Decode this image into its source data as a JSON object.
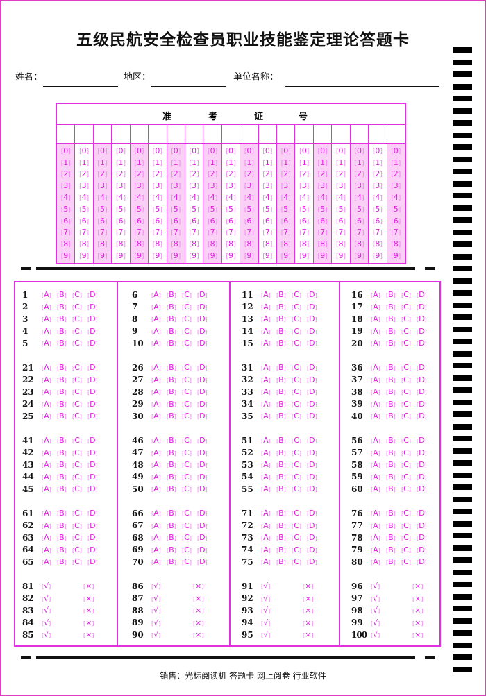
{
  "title": "五级民航安全检查员职业技能鉴定理论答题卡",
  "fields": [
    {
      "label": "姓名："
    },
    {
      "label": "地区："
    },
    {
      "label": "单位名称："
    }
  ],
  "exam_id": {
    "title_chars": [
      "准",
      "考",
      "证",
      "号"
    ],
    "columns": 19,
    "digits": [
      "0",
      "1",
      "2",
      "3",
      "4",
      "5",
      "6",
      "7",
      "8",
      "9"
    ]
  },
  "choice_options": [
    "A",
    "B",
    "C",
    "D"
  ],
  "tf_options": [
    "√",
    "×"
  ],
  "answer_rows": [
    {
      "type": "choice",
      "blocks": [
        [
          1,
          2,
          3,
          4,
          5
        ],
        [
          6,
          7,
          8,
          9,
          10
        ],
        [
          11,
          12,
          13,
          14,
          15
        ],
        [
          16,
          17,
          18,
          19,
          20
        ]
      ]
    },
    {
      "type": "choice",
      "blocks": [
        [
          21,
          22,
          23,
          24,
          25
        ],
        [
          26,
          27,
          28,
          29,
          30
        ],
        [
          31,
          32,
          33,
          34,
          35
        ],
        [
          36,
          37,
          38,
          39,
          40
        ]
      ]
    },
    {
      "type": "choice",
      "blocks": [
        [
          41,
          42,
          43,
          44,
          45
        ],
        [
          46,
          47,
          48,
          49,
          50
        ],
        [
          51,
          52,
          53,
          54,
          55
        ],
        [
          56,
          57,
          58,
          59,
          60
        ]
      ]
    },
    {
      "type": "choice",
      "blocks": [
        [
          61,
          62,
          63,
          64,
          65
        ],
        [
          66,
          67,
          68,
          69,
          70
        ],
        [
          71,
          72,
          73,
          74,
          75
        ],
        [
          76,
          77,
          78,
          79,
          80
        ]
      ]
    },
    {
      "type": "tf",
      "blocks": [
        [
          81,
          82,
          83,
          84,
          85
        ],
        [
          86,
          87,
          88,
          89,
          90
        ],
        [
          91,
          92,
          93,
          94,
          95
        ],
        [
          96,
          97,
          98,
          99,
          100
        ]
      ]
    }
  ],
  "footer": "销售：光标阅读机 答题卡 网上阅卷 行业软件",
  "colors": {
    "accent": "#e030e0",
    "shade": "#fbd0f6",
    "marks": "#000000"
  }
}
